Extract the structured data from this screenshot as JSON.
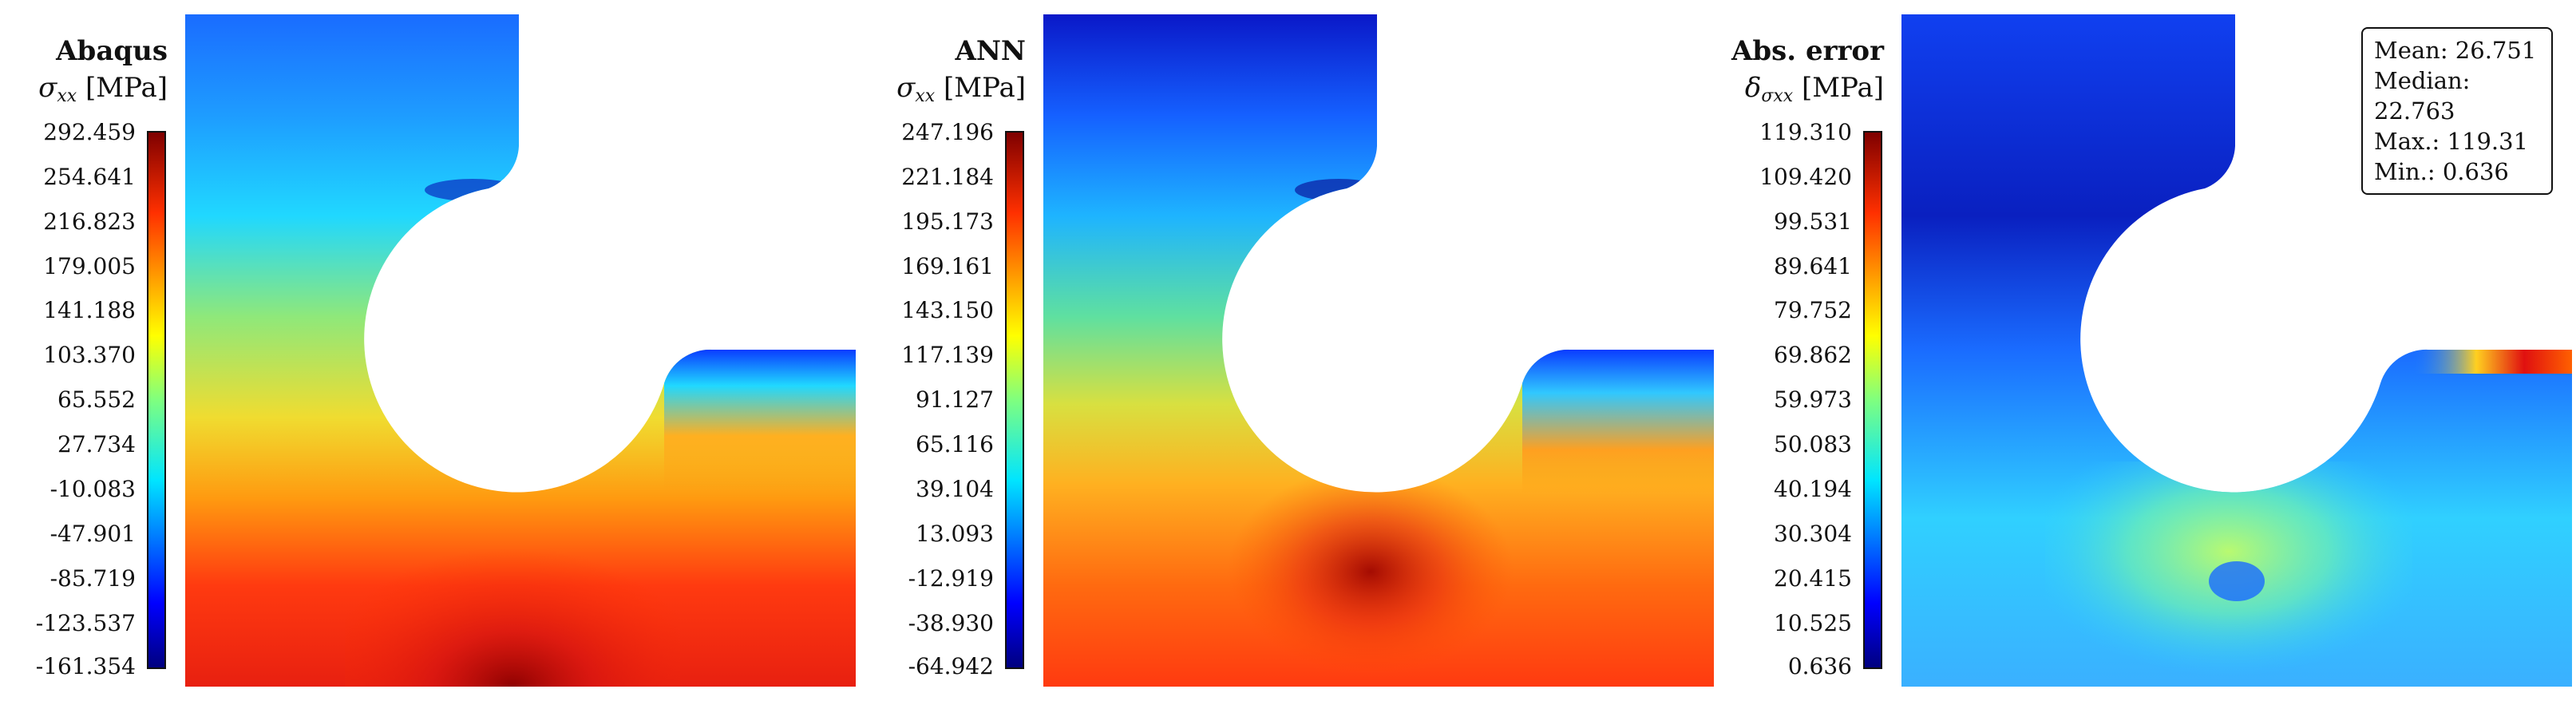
{
  "panels": [
    {
      "title": "Abaqus",
      "symbol": "σ",
      "symbol_sub": "xx",
      "unit": "[MPa]",
      "ticks": [
        "292.459",
        "254.641",
        "216.823",
        "179.005",
        "141.188",
        "103.370",
        "65.552",
        "27.734",
        "-10.083",
        "-47.901",
        "-85.719",
        "-123.537",
        "-161.354"
      ]
    },
    {
      "title": "ANN",
      "symbol": "σ",
      "symbol_sub": "xx",
      "unit": "[MPa]",
      "ticks": [
        "247.196",
        "221.184",
        "195.173",
        "169.161",
        "143.150",
        "117.139",
        "91.127",
        "65.116",
        "39.104",
        "13.093",
        "-12.919",
        "-38.930",
        "-64.942"
      ]
    },
    {
      "title": "Abs. error",
      "symbol": "δ",
      "symbol_sub": "σxx",
      "unit": "[MPa]",
      "ticks": [
        "119.310",
        "109.420",
        "99.531",
        "89.641",
        "79.752",
        "69.862",
        "59.973",
        "50.083",
        "40.194",
        "30.304",
        "20.415",
        "10.525",
        "0.636"
      ]
    }
  ],
  "stats": {
    "mean": "Mean: 26.751",
    "median": "Median: 22.763",
    "max": "Max.: 119.31",
    "min": "Min.: 0.636"
  },
  "colormap": "jet"
}
